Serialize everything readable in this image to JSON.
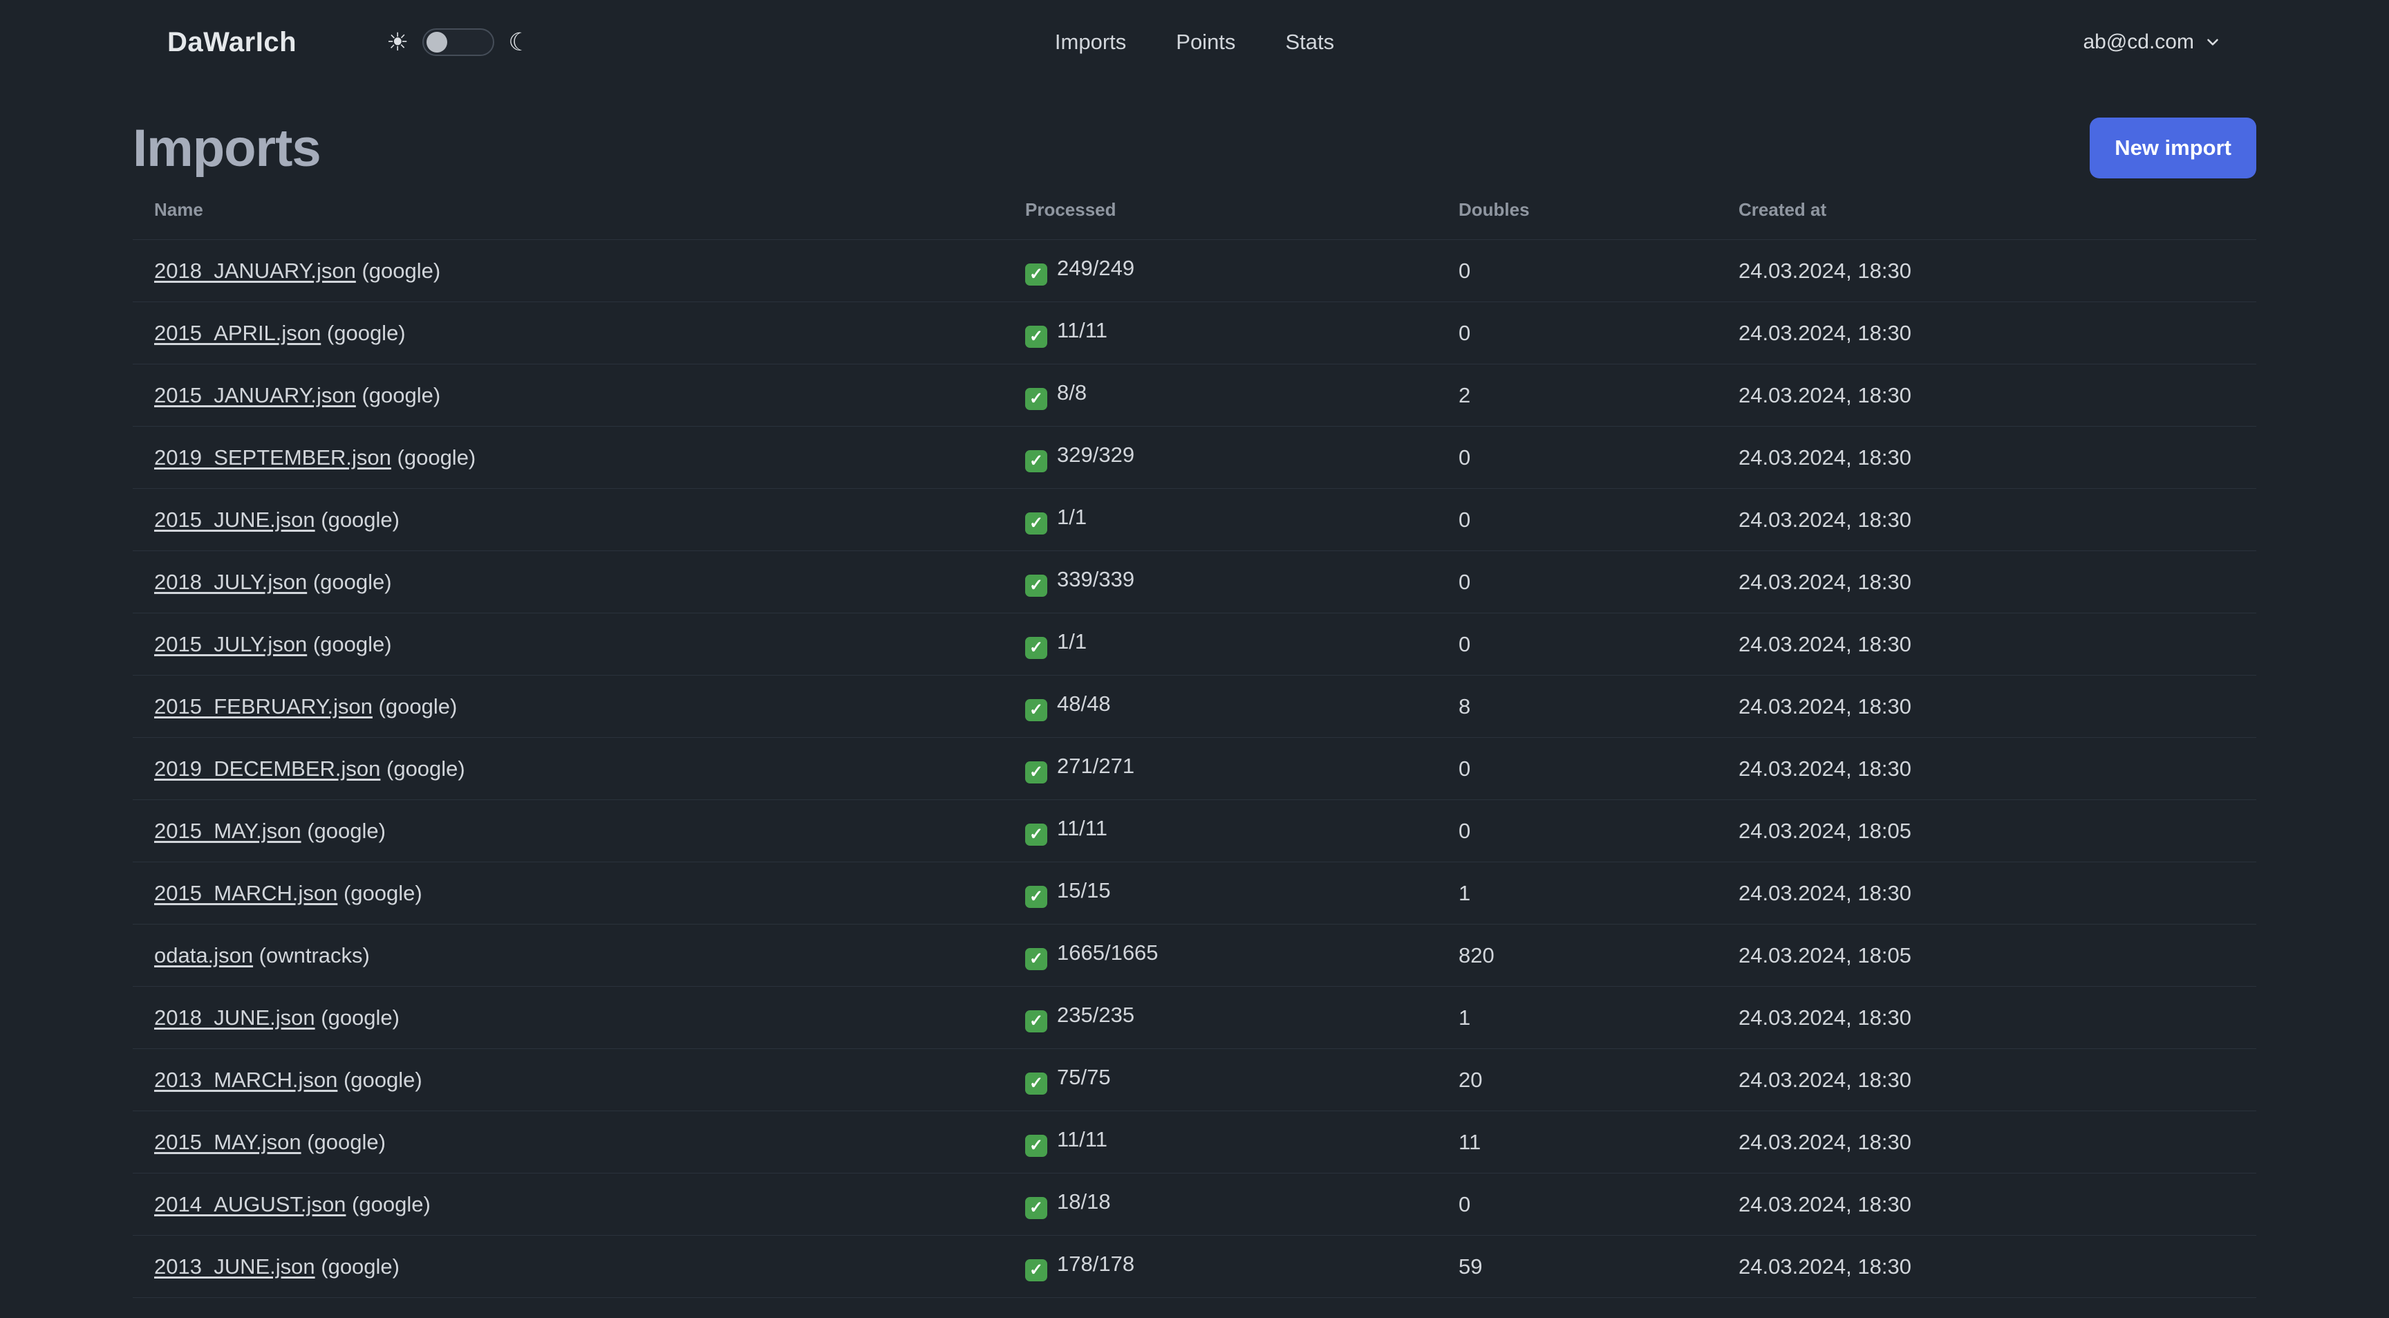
{
  "navbar": {
    "brand": "DaWarIch",
    "links": [
      {
        "label": "Imports"
      },
      {
        "label": "Points"
      },
      {
        "label": "Stats"
      }
    ],
    "user": {
      "email": "ab@cd.com"
    }
  },
  "icons": {
    "sun": "☀",
    "moon": "☾",
    "success_check": "✓"
  },
  "colors": {
    "background": "#1d232a",
    "accent_blue": "#4a69e2",
    "check_green": "#48a14d",
    "row_border": "#2a323c"
  },
  "page": {
    "title": "Imports",
    "new_import_label": "New import"
  },
  "table": {
    "columns": [
      "Name",
      "Processed",
      "Doubles",
      "Created at"
    ],
    "rows": [
      {
        "name": "2018_JANUARY.json",
        "source": "(google)",
        "processed": "249/249",
        "doubles": "0",
        "created_at": "24.03.2024, 18:30"
      },
      {
        "name": "2015_APRIL.json",
        "source": "(google)",
        "processed": "11/11",
        "doubles": "0",
        "created_at": "24.03.2024, 18:30"
      },
      {
        "name": "2015_JANUARY.json",
        "source": "(google)",
        "processed": "8/8",
        "doubles": "2",
        "created_at": "24.03.2024, 18:30"
      },
      {
        "name": "2019_SEPTEMBER.json",
        "source": "(google)",
        "processed": "329/329",
        "doubles": "0",
        "created_at": "24.03.2024, 18:30"
      },
      {
        "name": "2015_JUNE.json",
        "source": "(google)",
        "processed": "1/1",
        "doubles": "0",
        "created_at": "24.03.2024, 18:30"
      },
      {
        "name": "2018_JULY.json",
        "source": "(google)",
        "processed": "339/339",
        "doubles": "0",
        "created_at": "24.03.2024, 18:30"
      },
      {
        "name": "2015_JULY.json",
        "source": "(google)",
        "processed": "1/1",
        "doubles": "0",
        "created_at": "24.03.2024, 18:30"
      },
      {
        "name": "2015_FEBRUARY.json",
        "source": "(google)",
        "processed": "48/48",
        "doubles": "8",
        "created_at": "24.03.2024, 18:30"
      },
      {
        "name": "2019_DECEMBER.json",
        "source": "(google)",
        "processed": "271/271",
        "doubles": "0",
        "created_at": "24.03.2024, 18:30"
      },
      {
        "name": "2015_MAY.json",
        "source": "(google)",
        "processed": "11/11",
        "doubles": "0",
        "created_at": "24.03.2024, 18:05"
      },
      {
        "name": "2015_MARCH.json",
        "source": "(google)",
        "processed": "15/15",
        "doubles": "1",
        "created_at": "24.03.2024, 18:30"
      },
      {
        "name": "odata.json",
        "source": "(owntracks)",
        "processed": "1665/1665",
        "doubles": "820",
        "created_at": "24.03.2024, 18:05"
      },
      {
        "name": "2018_JUNE.json",
        "source": "(google)",
        "processed": "235/235",
        "doubles": "1",
        "created_at": "24.03.2024, 18:30"
      },
      {
        "name": "2013_MARCH.json",
        "source": "(google)",
        "processed": "75/75",
        "doubles": "20",
        "created_at": "24.03.2024, 18:30"
      },
      {
        "name": "2015_MAY.json",
        "source": "(google)",
        "processed": "11/11",
        "doubles": "11",
        "created_at": "24.03.2024, 18:30"
      },
      {
        "name": "2014_AUGUST.json",
        "source": "(google)",
        "processed": "18/18",
        "doubles": "0",
        "created_at": "24.03.2024, 18:30"
      },
      {
        "name": "2013_JUNE.json",
        "source": "(google)",
        "processed": "178/178",
        "doubles": "59",
        "created_at": "24.03.2024, 18:30"
      }
    ],
    "partial_row_visible": true
  }
}
